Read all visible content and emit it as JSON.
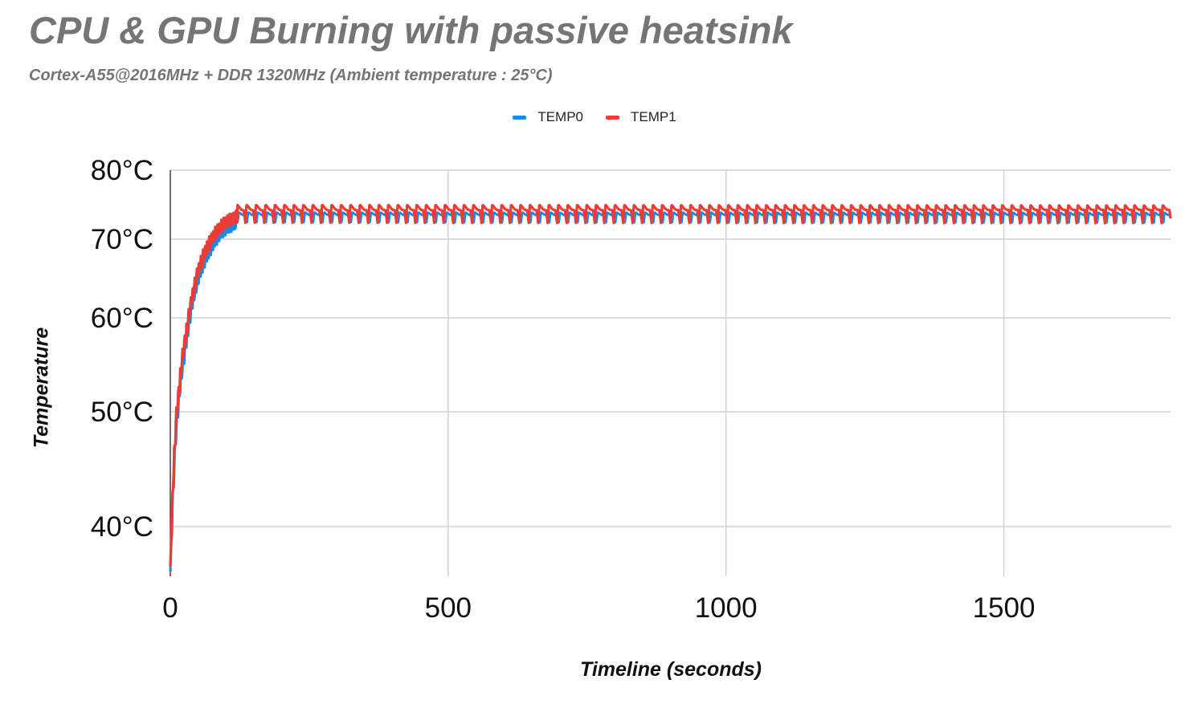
{
  "chart_data": {
    "type": "line",
    "title": "CPU & GPU Burning with passive heatsink",
    "subtitle": "Cortex-A55@2016MHz + DDR 1320MHz (Ambient temperature : 25°C)",
    "xlabel": "Timeline (seconds)",
    "ylabel": "Temperature",
    "xlim": [
      0,
      1800
    ],
    "ylim": [
      36,
      80
    ],
    "y_scale": "nonlinear",
    "x_ticks": [
      0,
      500,
      1000,
      1500
    ],
    "x_tick_labels": [
      "0",
      "500",
      "1000",
      "1500"
    ],
    "y_ticks": [
      40,
      50,
      60,
      70,
      80
    ],
    "y_tick_labels": [
      "40°C",
      "50°C",
      "60°C",
      "70°C",
      "80°C"
    ],
    "grid": true,
    "legend_position": "top-center",
    "series": [
      {
        "name": "TEMP0",
        "color": "#1e88e5",
        "x": [
          0,
          5,
          10,
          15,
          20,
          30,
          40,
          50,
          60,
          70,
          80,
          90,
          100,
          120,
          140,
          160,
          200,
          300,
          400,
          500,
          600,
          700,
          800,
          900,
          1000,
          1100,
          1200,
          1300,
          1400,
          1500,
          1600,
          1700,
          1800
        ],
        "y": [
          36,
          43,
          48,
          51,
          54,
          58,
          62,
          65,
          67,
          68.5,
          69.8,
          70.8,
          71.5,
          72.4,
          72.9,
          73.1,
          73.2,
          73.1,
          73.2,
          73.2,
          73.2,
          73.3,
          73.2,
          73.2,
          73.2,
          73.3,
          73.2,
          73.2,
          73.3,
          73.2,
          73.2,
          73.3,
          73.3
        ],
        "oscillation": {
          "period_s": 17,
          "low": 72.4,
          "high": 73.9
        }
      },
      {
        "name": "TEMP1",
        "color": "#ee3b34",
        "x": [
          0,
          5,
          10,
          15,
          20,
          30,
          40,
          50,
          60,
          70,
          80,
          90,
          100,
          120,
          140,
          160,
          200,
          300,
          400,
          500,
          600,
          700,
          800,
          900,
          1000,
          1100,
          1200,
          1300,
          1400,
          1500,
          1600,
          1700,
          1800
        ],
        "y": [
          36.5,
          44,
          49,
          52,
          55,
          59,
          63,
          66,
          68,
          69.5,
          70.8,
          71.8,
          72.5,
          73.3,
          73.8,
          74,
          74,
          73.9,
          74,
          74,
          74,
          74.1,
          74,
          74,
          74,
          74.1,
          74,
          74,
          74.1,
          74,
          74,
          74.1,
          74.1
        ],
        "oscillation": {
          "period_s": 17,
          "low": 72.3,
          "high": 75
        }
      }
    ]
  }
}
